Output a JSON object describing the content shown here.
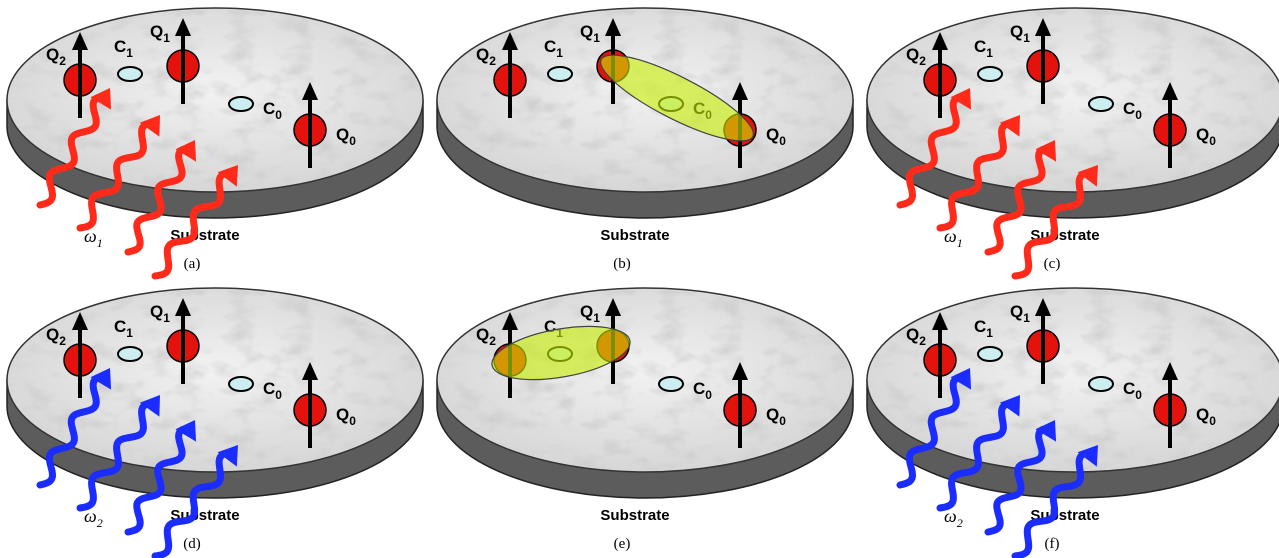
{
  "panels": [
    {
      "caption": "(a)",
      "substrate": "Substrate",
      "labels": [
        {
          "main": "Q",
          "sub": "2"
        },
        {
          "main": "C",
          "sub": "1"
        },
        {
          "main": "Q",
          "sub": "1"
        },
        {
          "main": "C",
          "sub": "0"
        },
        {
          "main": "Q",
          "sub": "0"
        }
      ],
      "wave": {
        "symbol": "ω",
        "sub": "1",
        "color": "#ff2a1a"
      }
    },
    {
      "caption": "(b)",
      "substrate": "Substrate",
      "labels": [
        {
          "main": "Q",
          "sub": "2"
        },
        {
          "main": "C",
          "sub": "1"
        },
        {
          "main": "Q",
          "sub": "1"
        },
        {
          "main": "C",
          "sub": "0"
        },
        {
          "main": "Q",
          "sub": "0"
        }
      ]
    },
    {
      "caption": "(c)",
      "substrate": "Substrate",
      "labels": [
        {
          "main": "Q",
          "sub": "2"
        },
        {
          "main": "C",
          "sub": "1"
        },
        {
          "main": "Q",
          "sub": "1"
        },
        {
          "main": "C",
          "sub": "0"
        },
        {
          "main": "Q",
          "sub": "0"
        }
      ],
      "wave": {
        "symbol": "ω",
        "sub": "1",
        "color": "#ff2a1a"
      }
    },
    {
      "caption": "(d)",
      "substrate": "Substrate",
      "labels": [
        {
          "main": "Q",
          "sub": "2"
        },
        {
          "main": "C",
          "sub": "1"
        },
        {
          "main": "Q",
          "sub": "1"
        },
        {
          "main": "C",
          "sub": "0"
        },
        {
          "main": "Q",
          "sub": "0"
        }
      ],
      "wave": {
        "symbol": "ω",
        "sub": "2",
        "color": "#1a2cff"
      }
    },
    {
      "caption": "(e)",
      "substrate": "Substrate",
      "labels": [
        {
          "main": "Q",
          "sub": "2"
        },
        {
          "main": "C",
          "sub": "1"
        },
        {
          "main": "Q",
          "sub": "1"
        },
        {
          "main": "C",
          "sub": "0"
        },
        {
          "main": "Q",
          "sub": "0"
        }
      ]
    },
    {
      "caption": "(f)",
      "substrate": "Substrate",
      "labels": [
        {
          "main": "Q",
          "sub": "2"
        },
        {
          "main": "C",
          "sub": "1"
        },
        {
          "main": "Q",
          "sub": "1"
        },
        {
          "main": "C",
          "sub": "0"
        },
        {
          "main": "Q",
          "sub": "0"
        }
      ],
      "wave": {
        "symbol": "ω",
        "sub": "2",
        "color": "#1a2cff"
      }
    }
  ]
}
